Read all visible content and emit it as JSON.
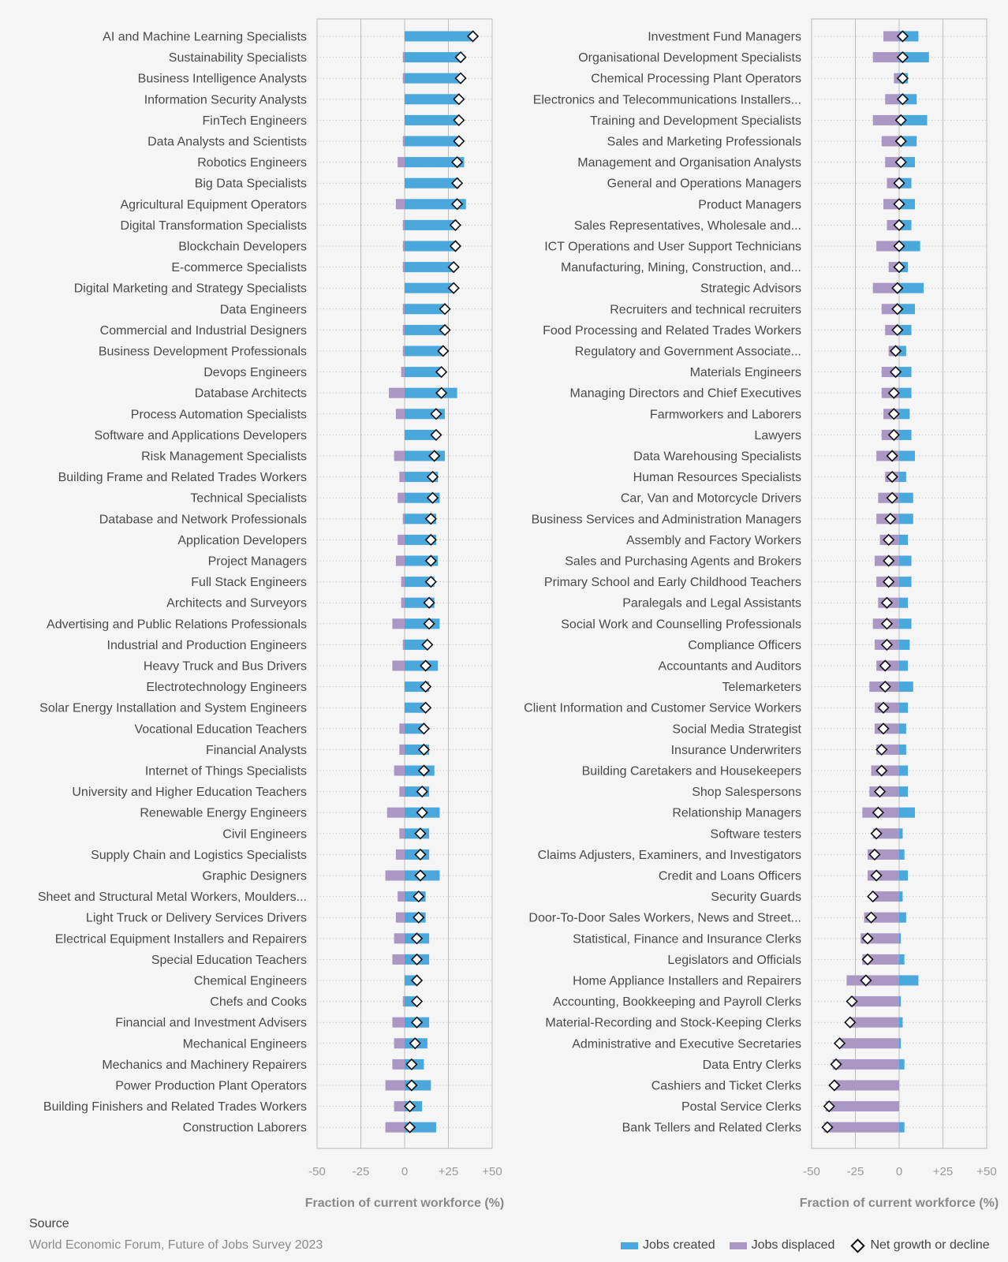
{
  "colors": {
    "created": "#4aa8dc",
    "displaced": "#a997c4",
    "net_fill": "#ffffff",
    "net_stroke": "#111111"
  },
  "chart_data": [
    {
      "type": "bar",
      "orientation": "horizontal",
      "xlabel": "Fraction of current workforce (%)",
      "xlim": [
        -50,
        50
      ],
      "ticks": [
        -50,
        -25,
        0,
        25,
        50
      ],
      "tick_labels": [
        "-50",
        "-25",
        "0",
        "+25",
        "+50"
      ],
      "grid": true,
      "series_names": {
        "created": "Jobs created",
        "displaced": "Jobs displaced",
        "net": "Net growth or decline"
      },
      "categories": [
        "AI and Machine Learning Specialists",
        "Sustainability Specialists",
        "Business Intelligence Analysts",
        "Information Security Analysts",
        "FinTech Engineers",
        "Data Analysts and Scientists",
        "Robotics Engineers",
        "Big Data Specialists",
        "Agricultural Equipment Operators",
        "Digital Transformation Specialists",
        "Blockchain Developers",
        "E-commerce Specialists",
        "Digital Marketing and Strategy Specialists",
        "Data Engineers",
        "Commercial and Industrial Designers",
        "Business Development Professionals",
        "Devops Engineers",
        "Database Architects",
        "Process Automation Specialists",
        "Software and Applications Developers",
        "Risk Management Specialists",
        "Building Frame and Related Trades Workers",
        "Technical Specialists",
        "Database and Network Professionals",
        "Application Developers",
        "Project Managers",
        "Full Stack Engineers",
        "Architects and Surveyors",
        "Advertising and Public Relations Professionals",
        "Industrial and Production Engineers",
        "Heavy Truck and Bus Drivers",
        "Electrotechnology Engineers",
        "Solar Energy Installation and System Engineers",
        "Vocational Education Teachers",
        "Financial Analysts",
        "Internet of Things Specialists",
        "University and Higher Education Teachers",
        "Renewable Energy Engineers",
        "Civil Engineers",
        "Supply Chain and Logistics Specialists",
        "Graphic Designers",
        "Sheet and Structural Metal Workers, Moulders...",
        "Light Truck or Delivery Services Drivers",
        "Electrical Equipment Installers and Repairers",
        "Special Education Teachers",
        "Chemical Engineers",
        "Chefs and Cooks",
        "Financial and Investment Advisers",
        "Mechanical Engineers",
        "Mechanics and Machinery Repairers",
        "Power Production Plant Operators",
        "Building Finishers and Related Trades Workers",
        "Construction Laborers"
      ],
      "created": [
        39,
        33,
        32,
        31,
        31,
        31,
        34,
        31,
        35,
        30,
        30,
        28,
        28,
        23,
        23,
        22,
        21,
        30,
        23,
        18,
        23,
        19,
        20,
        18,
        18,
        19,
        17,
        17,
        20,
        13,
        19,
        14,
        12,
        12,
        14,
        17,
        14,
        20,
        14,
        14,
        20,
        12,
        12,
        14,
        14,
        7,
        7,
        14,
        13,
        11,
        15,
        10,
        18
      ],
      "displaced": [
        0,
        -1,
        -1,
        0,
        0,
        -1,
        -4,
        0,
        -5,
        -1,
        -1,
        -1,
        0,
        -1,
        -1,
        -1,
        -2,
        -9,
        -5,
        0,
        -6,
        -3,
        -4,
        -1,
        -4,
        -5,
        -2,
        -2,
        -7,
        -1,
        -7,
        0,
        0,
        -3,
        -3,
        -6,
        -3,
        -10,
        -3,
        -5,
        -11,
        -4,
        -5,
        -6,
        -7,
        0,
        -1,
        -7,
        -6,
        -7,
        -11,
        -6,
        -11
      ],
      "net": [
        39,
        32,
        32,
        31,
        31,
        31,
        30,
        30,
        30,
        29,
        29,
        28,
        28,
        23,
        23,
        22,
        21,
        21,
        18,
        18,
        17,
        16,
        16,
        15,
        15,
        15,
        15,
        14,
        14,
        13,
        12,
        12,
        12,
        11,
        11,
        11,
        10,
        10,
        9,
        9,
        9,
        8,
        8,
        7,
        7,
        7,
        7,
        7,
        6,
        4,
        4,
        3,
        3
      ]
    },
    {
      "type": "bar",
      "orientation": "horizontal",
      "xlabel": "Fraction of current workforce (%)",
      "xlim": [
        -50,
        50
      ],
      "ticks": [
        -50,
        -25,
        0,
        25,
        50
      ],
      "tick_labels": [
        "-50",
        "-25",
        "0",
        "+25",
        "+50"
      ],
      "grid": true,
      "series_names": {
        "created": "Jobs created",
        "displaced": "Jobs displaced",
        "net": "Net growth or decline"
      },
      "categories": [
        "Investment Fund Managers",
        "Organisational Development Specialists",
        "Chemical Processing Plant Operators",
        "Electronics and Telecommunications Installers...",
        "Training and Development Specialists",
        "Sales and Marketing Professionals",
        "Management and Organisation Analysts",
        "General and Operations Managers",
        "Product Managers",
        "Sales Representatives, Wholesale and...",
        "ICT Operations and User Support Technicians",
        "Manufacturing, Mining, Construction, and...",
        "Strategic Advisors",
        "Recruiters and technical recruiters",
        "Food Processing and Related Trades Workers",
        "Regulatory and Government Associate...",
        "Materials Engineers",
        "Managing Directors and Chief Executives",
        "Farmworkers and Laborers",
        "Lawyers",
        "Data Warehousing Specialists",
        "Human Resources Specialists",
        "Car, Van and Motorcycle Drivers",
        "Business Services and Administration Managers",
        "Assembly and Factory Workers",
        "Sales and Purchasing Agents and Brokers",
        "Primary School and Early Childhood Teachers",
        "Paralegals and Legal Assistants",
        "Social Work and Counselling Professionals",
        "Compliance Officers",
        "Accountants and Auditors",
        "Telemarketers",
        "Client Information and Customer Service Workers",
        "Social Media Strategist",
        "Insurance Underwriters",
        "Building Caretakers and Housekeepers",
        "Shop Salespersons",
        "Relationship Managers",
        "Software testers",
        "Claims Adjusters, Examiners, and Investigators",
        "Credit and Loans Officers",
        "Security Guards",
        "Door-To-Door Sales Workers, News and Street...",
        "Statistical, Finance and Insurance Clerks",
        "Legislators and Officials",
        "Home Appliance Installers and Repairers",
        "Accounting, Bookkeeping and Payroll Clerks",
        "Material-Recording and Stock-Keeping Clerks",
        "Administrative and Executive Secretaries",
        "Data Entry Clerks",
        "Cashiers and Ticket Clerks",
        "Postal Service Clerks",
        "Bank Tellers and Related Clerks"
      ],
      "created": [
        11,
        17,
        5,
        10,
        16,
        10,
        9,
        7,
        9,
        7,
        12,
        5,
        14,
        9,
        7,
        4,
        7,
        7,
        6,
        7,
        9,
        4,
        8,
        8,
        5,
        7,
        7,
        5,
        7,
        6,
        5,
        8,
        5,
        4,
        4,
        5,
        5,
        9,
        2,
        3,
        5,
        2,
        4,
        1,
        3,
        11,
        1,
        2,
        1,
        3,
        0,
        0,
        3
      ],
      "displaced": [
        -9,
        -15,
        -3,
        -8,
        -15,
        -10,
        -8,
        -7,
        -9,
        -7,
        -13,
        -6,
        -15,
        -10,
        -8,
        -6,
        -10,
        -10,
        -9,
        -10,
        -13,
        -8,
        -12,
        -13,
        -11,
        -14,
        -13,
        -12,
        -15,
        -14,
        -13,
        -17,
        -14,
        -14,
        -13,
        -16,
        -17,
        -21,
        -15,
        -18,
        -18,
        -16,
        -20,
        -22,
        -21,
        -30,
        -28,
        -28,
        -34,
        -38,
        -37,
        -42,
        -43
      ],
      "net": [
        2,
        2,
        2,
        2,
        1,
        1,
        1,
        0,
        0,
        0,
        0,
        0,
        -1,
        -1,
        -1,
        -2,
        -2,
        -3,
        -3,
        -3,
        -4,
        -4,
        -4,
        -5,
        -6,
        -6,
        -6,
        -7,
        -7,
        -7,
        -8,
        -8,
        -9,
        -9,
        -10,
        -10,
        -11,
        -12,
        -13,
        -14,
        -13,
        -15,
        -16,
        -18,
        -18,
        -19,
        -27,
        -28,
        -34,
        -36,
        -37,
        -40,
        -41
      ]
    }
  ],
  "footer": {
    "source_label": "Source",
    "source_text": "World Economic Forum, Future of Jobs Survey 2023"
  }
}
